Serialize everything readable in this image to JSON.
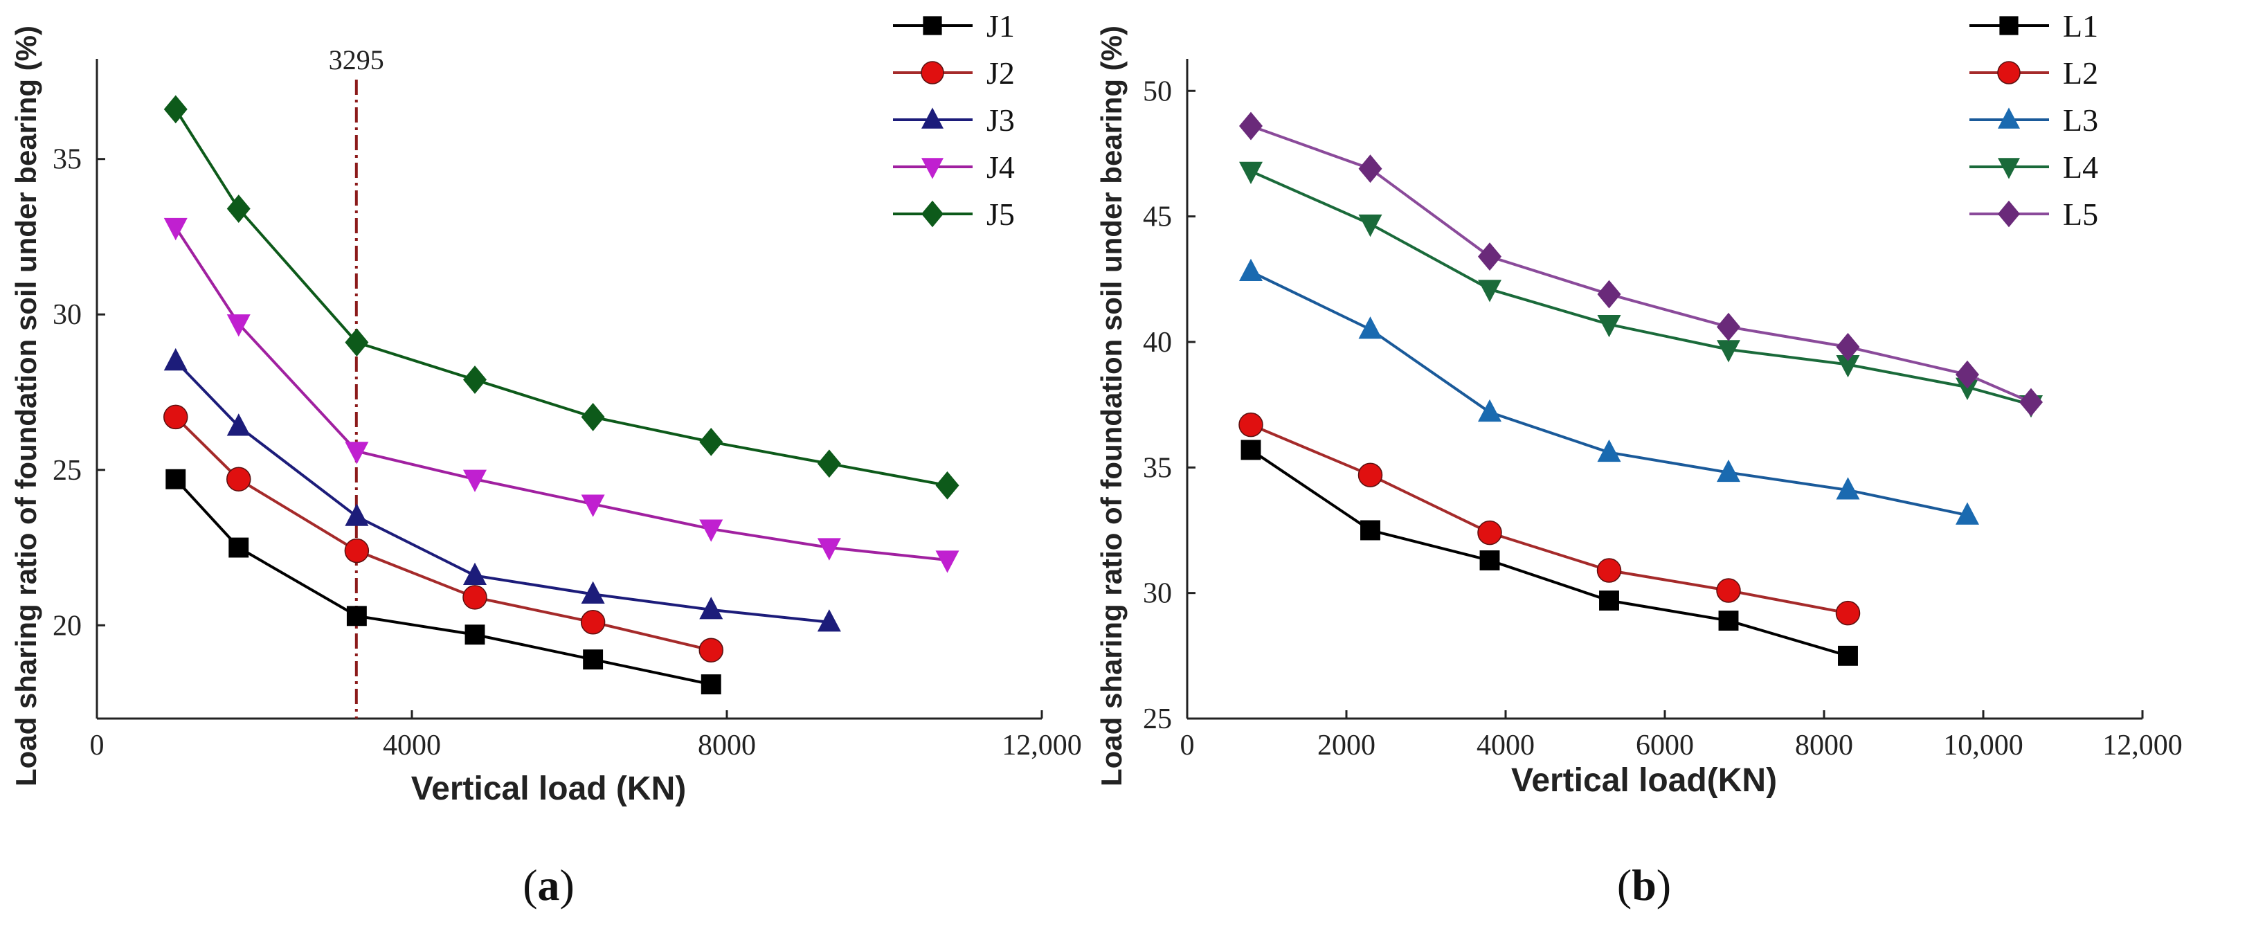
{
  "chart_data": [
    {
      "id": "a",
      "type": "line",
      "caption_letter": "a",
      "xlabel": "Vertical load (KN)",
      "ylabel": "Load sharing ratio of foundation soil under bearing (%)",
      "xlim": [
        0,
        12000
      ],
      "ylim": [
        17,
        38
      ],
      "xticks": [
        0,
        4000,
        8000,
        12000
      ],
      "xtick_labels": [
        "0",
        "4000",
        "8000",
        "12,000"
      ],
      "yticks": [
        20,
        25,
        30,
        35
      ],
      "ytick_labels": [
        "20",
        "25",
        "30",
        "35"
      ],
      "annotation": {
        "x": 3295,
        "label": "3295",
        "color": "#8b1a1a"
      },
      "series": [
        {
          "name": "J1",
          "color": "#000000",
          "marker": "square",
          "x": [
            1000,
            1800,
            3300,
            4800,
            6300,
            7800
          ],
          "y": [
            24.7,
            22.5,
            20.3,
            19.7,
            18.9,
            18.1
          ]
        },
        {
          "name": "J2",
          "color": "#a52a2a",
          "marker_color": "#e01010",
          "marker": "circle",
          "x": [
            1000,
            1800,
            3300,
            4800,
            6300,
            7800
          ],
          "y": [
            26.7,
            24.7,
            22.4,
            20.9,
            20.1,
            19.2
          ]
        },
        {
          "name": "J3",
          "color": "#1c1c7a",
          "marker": "triangle-up",
          "x": [
            1000,
            1800,
            3300,
            4800,
            6300,
            7800,
            9300
          ],
          "y": [
            28.5,
            26.4,
            23.5,
            21.6,
            21.0,
            20.5,
            20.1
          ]
        },
        {
          "name": "J4",
          "color": "#a020a0",
          "marker_color": "#c020d0",
          "marker": "triangle-down",
          "x": [
            1000,
            1800,
            3300,
            4800,
            6300,
            7800,
            9300,
            10800
          ],
          "y": [
            32.8,
            29.7,
            25.6,
            24.7,
            23.9,
            23.1,
            22.5,
            22.1
          ]
        },
        {
          "name": "J5",
          "color": "#0d5a1a",
          "marker": "diamond",
          "x": [
            1000,
            1800,
            3300,
            4800,
            6300,
            7800,
            9300,
            10800
          ],
          "y": [
            36.6,
            33.4,
            29.1,
            27.9,
            26.7,
            25.9,
            25.2,
            24.5
          ]
        }
      ]
    },
    {
      "id": "b",
      "type": "line",
      "caption_letter": "b",
      "xlabel": "Vertical load(KN)",
      "ylabel": "Load sharing ratio of foundation soil under bearing (%)",
      "xlim": [
        0,
        12000
      ],
      "ylim": [
        25,
        51
      ],
      "xticks": [
        0,
        2000,
        4000,
        6000,
        8000,
        10000,
        12000
      ],
      "xtick_labels": [
        "0",
        "2000",
        "4000",
        "6000",
        "8000",
        "10,000",
        "12,000"
      ],
      "yticks": [
        25,
        30,
        35,
        40,
        45,
        50
      ],
      "ytick_labels": [
        "25",
        "30",
        "35",
        "40",
        "45",
        "50"
      ],
      "series": [
        {
          "name": "L1",
          "color": "#000000",
          "marker": "square",
          "x": [
            800,
            2300,
            3800,
            5300,
            6800,
            8300
          ],
          "y": [
            35.7,
            32.5,
            31.3,
            29.7,
            28.9,
            27.5
          ]
        },
        {
          "name": "L2",
          "color": "#a52a2a",
          "marker_color": "#e01010",
          "marker": "circle",
          "x": [
            800,
            2300,
            3800,
            5300,
            6800,
            8300
          ],
          "y": [
            36.7,
            34.7,
            32.4,
            30.9,
            30.1,
            29.2
          ]
        },
        {
          "name": "L3",
          "color": "#1a5a9a",
          "marker_color": "#1a6ab0",
          "marker": "triangle-up",
          "x": [
            800,
            2300,
            3800,
            5300,
            6800,
            8300,
            9800
          ],
          "y": [
            42.8,
            40.5,
            37.2,
            35.6,
            34.8,
            34.1,
            33.1
          ]
        },
        {
          "name": "L4",
          "color": "#1a6a3a",
          "marker": "triangle-down",
          "x": [
            800,
            2300,
            3800,
            5300,
            6800,
            8300,
            9800,
            10600
          ],
          "y": [
            46.8,
            44.7,
            42.1,
            40.7,
            39.7,
            39.1,
            38.2,
            37.5
          ]
        },
        {
          "name": "L5",
          "color": "#8a4a9a",
          "marker_color": "#6a2a7a",
          "marker": "diamond",
          "x": [
            800,
            2300,
            3800,
            5300,
            6800,
            8300,
            9800,
            10600
          ],
          "y": [
            48.6,
            46.9,
            43.4,
            41.9,
            40.6,
            39.8,
            38.7,
            37.6
          ]
        }
      ]
    }
  ]
}
